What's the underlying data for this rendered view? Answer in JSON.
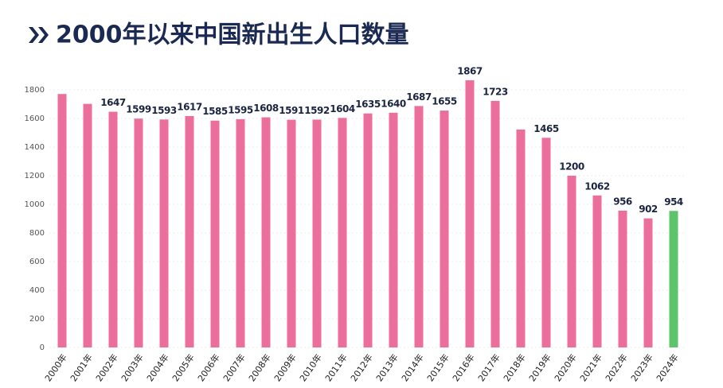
{
  "chart_data": {
    "type": "bar",
    "title": "2000年以来中国新出生人口数量",
    "categories": [
      "2000年",
      "2001年",
      "2002年",
      "2003年",
      "2004年",
      "2005年",
      "2006年",
      "2007年",
      "2008年",
      "2009年",
      "2010年",
      "2011年",
      "2012年",
      "2013年",
      "2014年",
      "2015年",
      "2016年",
      "2017年",
      "2018年",
      "2019年",
      "2020年",
      "2021年",
      "2022年",
      "2023年",
      "2024年"
    ],
    "values": [
      1771,
      1702,
      1647,
      1599,
      1593,
      1617,
      1585,
      1595,
      1608,
      1591,
      1592,
      1604,
      1635,
      1640,
      1687,
      1655,
      1867,
      1723,
      1523,
      1465,
      1200,
      1062,
      956,
      902,
      954
    ],
    "value_labels": [
      null,
      null,
      "1647",
      "1599",
      "1593",
      "1617",
      "1585",
      "1595",
      "1608",
      "1591",
      "1592",
      "1604",
      "1635",
      "1640",
      "1687",
      "1655",
      "1867",
      "1723",
      null,
      "1465",
      "1200",
      "1062",
      "956",
      "902",
      "954"
    ],
    "colors": [
      "#ec6f9b",
      "#ec6f9b",
      "#ec6f9b",
      "#ec6f9b",
      "#ec6f9b",
      "#ec6f9b",
      "#ec6f9b",
      "#ec6f9b",
      "#ec6f9b",
      "#ec6f9b",
      "#ec6f9b",
      "#ec6f9b",
      "#ec6f9b",
      "#ec6f9b",
      "#ec6f9b",
      "#ec6f9b",
      "#ec6f9b",
      "#ec6f9b",
      "#ec6f9b",
      "#ec6f9b",
      "#ec6f9b",
      "#ec6f9b",
      "#ec6f9b",
      "#ec6f9b",
      "#5cc46a"
    ],
    "ylim": [
      0,
      2000
    ],
    "yticks": [
      0,
      200,
      400,
      600,
      800,
      1000,
      1200,
      1400,
      1600,
      1800
    ],
    "grid": true
  }
}
